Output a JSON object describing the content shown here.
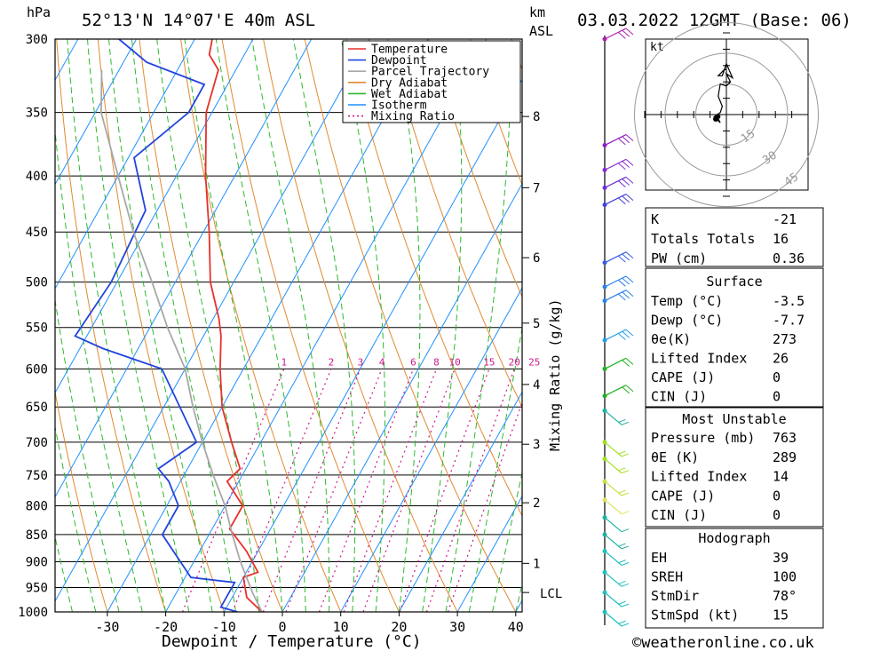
{
  "header": {
    "pressure_unit": "hPa",
    "location": "52°13'N  14°07'E  40m  ASL",
    "height_unit_km": "km",
    "height_unit_asl": "ASL",
    "datetime": "03.03.2022  12GMT  (Base: 06)"
  },
  "footer": {
    "xlabel": "Dewpoint / Temperature (°C)",
    "copyright": "©weatheronline.co.uk"
  },
  "chart_data": [
    {
      "type": "line",
      "title": "",
      "xlabel": "Dewpoint / Temperature (°C)",
      "ylabel": "hPa",
      "right_axis_label": "km ASL",
      "mixing_axis_label": "Mixing Ratio (g/kg)",
      "y_scale": "log-pressure (skew-T)",
      "x_ticks": [
        -30,
        -20,
        -10,
        0,
        10,
        20,
        30,
        40
      ],
      "pressure_ticks": [
        300,
        350,
        400,
        450,
        500,
        550,
        600,
        650,
        700,
        750,
        800,
        850,
        900,
        950,
        1000
      ],
      "height_km_ticks": [
        {
          "km": "8",
          "p": 353
        },
        {
          "km": "7",
          "p": 410
        },
        {
          "km": "6",
          "p": 475
        },
        {
          "km": "5",
          "p": 545
        },
        {
          "km": "4",
          "p": 620
        },
        {
          "km": "3",
          "p": 703
        },
        {
          "km": "2",
          "p": 795
        },
        {
          "km": "1",
          "p": 903
        }
      ],
      "lcl": {
        "label": "LCL",
        "p": 960
      },
      "mixing_ratio_labels": [
        "1",
        "2",
        "3",
        "4",
        "6",
        "8",
        "10",
        "15",
        "20",
        "25"
      ],
      "legend": [
        "Temperature",
        "Dewpoint",
        "Parcel Trajectory",
        "Dry Adiabat",
        "Wet Adiabat",
        "Isotherm",
        "Mixing Ratio"
      ],
      "colors": {
        "temperature": "#e8302b",
        "dewpoint": "#2244dd",
        "parcel": "#a8a8a8",
        "dry_adiabat": "#e08a30",
        "wet_adiabat": "#2eb82e",
        "isotherm": "#1e90ff",
        "mixing_ratio": "#cc1a8c"
      },
      "series": [
        {
          "name": "Temperature",
          "points": [
            [
              1000,
              -3.5
            ],
            [
              970,
              -7.5
            ],
            [
              930,
              -10
            ],
            [
              920,
              -8
            ],
            [
              880,
              -12
            ],
            [
              840,
              -17
            ],
            [
              800,
              -17
            ],
            [
              760,
              -22
            ],
            [
              740,
              -21
            ],
            [
              700,
              -25
            ],
            [
              650,
              -30
            ],
            [
              600,
              -34
            ],
            [
              560,
              -37
            ],
            [
              540,
              -39
            ],
            [
              500,
              -44
            ],
            [
              450,
              -49
            ],
            [
              400,
              -55
            ],
            [
              350,
              -61
            ],
            [
              320,
              -63
            ],
            [
              310,
              -66
            ],
            [
              300,
              -67
            ]
          ]
        },
        {
          "name": "Dewpoint",
          "points": [
            [
              1000,
              -7.7
            ],
            [
              990,
              -11
            ],
            [
              940,
              -11
            ],
            [
              930,
              -19
            ],
            [
              850,
              -28
            ],
            [
              800,
              -28
            ],
            [
              760,
              -32
            ],
            [
              740,
              -35
            ],
            [
              700,
              -31
            ],
            [
              600,
              -44
            ],
            [
              575,
              -56
            ],
            [
              560,
              -62
            ],
            [
              500,
              -61
            ],
            [
              430,
              -62
            ],
            [
              385,
              -69
            ],
            [
              350,
              -64
            ],
            [
              330,
              -64
            ],
            [
              315,
              -76
            ],
            [
              300,
              -83
            ]
          ]
        },
        {
          "name": "Parcel Trajectory",
          "points": [
            [
              1000,
              -3.5
            ],
            [
              960,
              -7
            ],
            [
              900,
              -12
            ],
            [
              850,
              -16
            ],
            [
              800,
              -20
            ],
            [
              750,
              -25
            ],
            [
              700,
              -30
            ],
            [
              650,
              -35
            ],
            [
              600,
              -40
            ],
            [
              550,
              -47
            ],
            [
              500,
              -54
            ],
            [
              450,
              -62
            ],
            [
              400,
              -70
            ],
            [
              350,
              -79
            ],
            [
              320,
              -83
            ]
          ]
        }
      ]
    },
    {
      "type": "scatter",
      "title": "",
      "unit": "kt",
      "ring_labels": [
        "15",
        "30",
        "45"
      ],
      "hodograph_points_kt": [
        [
          -4,
          -1
        ],
        [
          -5,
          -1
        ],
        [
          -4,
          -2
        ],
        [
          -3,
          -4
        ],
        [
          -6,
          -1
        ],
        [
          -3,
          1
        ],
        [
          -2,
          4
        ],
        [
          -4,
          9
        ],
        [
          -3,
          15
        ],
        [
          0,
          14
        ],
        [
          2,
          16
        ],
        [
          0,
          20
        ],
        [
          3,
          18
        ],
        [
          0,
          25
        ],
        [
          -2,
          19
        ],
        [
          -4,
          19
        ],
        [
          -1,
          22
        ],
        [
          0,
          22
        ]
      ]
    }
  ],
  "indices": {
    "block1": [
      {
        "label": "K",
        "value": "-21"
      },
      {
        "label": "Totals Totals",
        "value": "16"
      },
      {
        "label": "PW (cm)",
        "value": "0.36"
      }
    ],
    "surface": {
      "header": "Surface",
      "rows": [
        {
          "label": "Temp (°C)",
          "value": "-3.5"
        },
        {
          "label": "Dewp (°C)",
          "value": "-7.7"
        },
        {
          "label": "θe(K)",
          "value": "273"
        },
        {
          "label": "Lifted Index",
          "value": "26"
        },
        {
          "label": "CAPE (J)",
          "value": "0"
        },
        {
          "label": "CIN (J)",
          "value": "0"
        }
      ]
    },
    "most_unstable": {
      "header": "Most Unstable",
      "rows": [
        {
          "label": "Pressure (mb)",
          "value": "763"
        },
        {
          "label": "θE (K)",
          "value": "289"
        },
        {
          "label": "Lifted Index",
          "value": "14"
        },
        {
          "label": "CAPE (J)",
          "value": "0"
        },
        {
          "label": "CIN (J)",
          "value": "0"
        }
      ]
    },
    "hodograph": {
      "header": "Hodograph",
      "rows": [
        {
          "label": "EH",
          "value": "39"
        },
        {
          "label": "SREH",
          "value": "100"
        },
        {
          "label": "StmDir",
          "value": "78°"
        },
        {
          "label": "StmSpd (kt)",
          "value": "15"
        }
      ]
    }
  },
  "wind_profile": [
    {
      "p": 300,
      "color": "#b01fb0",
      "barbs": 3
    },
    {
      "p": 375,
      "color": "#9020c0",
      "barbs": 3
    },
    {
      "p": 395,
      "color": "#8a2bd0",
      "barbs": 3
    },
    {
      "p": 410,
      "color": "#7030d8",
      "barbs": 3
    },
    {
      "p": 425,
      "color": "#4040e0",
      "barbs": 3
    },
    {
      "p": 480,
      "color": "#3a5ae8",
      "barbs": 3
    },
    {
      "p": 505,
      "color": "#2a82ec",
      "barbs": 3
    },
    {
      "p": 520,
      "color": "#2a82ec",
      "barbs": 3
    },
    {
      "p": 565,
      "color": "#1f9ee8",
      "barbs": 3
    },
    {
      "p": 600,
      "color": "#22b022",
      "barbs": 2
    },
    {
      "p": 635,
      "color": "#22b022",
      "barbs": 2
    },
    {
      "p": 655,
      "color": "#20b0a0",
      "barbs": 2
    },
    {
      "p": 700,
      "color": "#a0e020",
      "barbs": 2
    },
    {
      "p": 725,
      "color": "#a0e020",
      "barbs": 2
    },
    {
      "p": 760,
      "color": "#c8e040",
      "barbs": 2
    },
    {
      "p": 790,
      "color": "#e0e060",
      "barbs": 1
    },
    {
      "p": 820,
      "color": "#20b0a0",
      "barbs": 1
    },
    {
      "p": 850,
      "color": "#20b0a0",
      "barbs": 2
    },
    {
      "p": 880,
      "color": "#20c0c0",
      "barbs": 2
    },
    {
      "p": 920,
      "color": "#20c0c0",
      "barbs": 2
    },
    {
      "p": 960,
      "color": "#20c0c0",
      "barbs": 2
    },
    {
      "p": 1000,
      "color": "#20c0c0",
      "barbs": 2
    }
  ]
}
